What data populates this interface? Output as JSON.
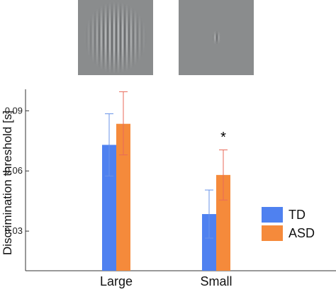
{
  "stimuli": [
    {
      "name": "Large",
      "kind": "grating-wide"
    },
    {
      "name": "Small",
      "kind": "grating-narrow"
    }
  ],
  "chart_data": {
    "type": "bar",
    "ylabel": "Discrimination threshold [s]",
    "xlabel": "",
    "categories": [
      "Large",
      "Small"
    ],
    "ylim": [
      0.0,
      0.1
    ],
    "yticks": [
      0.03,
      0.06,
      0.09
    ],
    "ytick_labels": [
      "0.03",
      "0.06",
      "0.09"
    ],
    "series": [
      {
        "name": "TD",
        "color": "#4f81f0",
        "values": [
          0.073,
          0.0385
        ],
        "err_low": [
          0.0575,
          0.0265
        ],
        "err_high": [
          0.0885,
          0.0505
        ]
      },
      {
        "name": "ASD",
        "color": "#f58a3b",
        "values": [
          0.0835,
          0.058
        ],
        "err_low": [
          0.068,
          0.0455
        ],
        "err_high": [
          0.0995,
          0.0705
        ]
      }
    ],
    "error_colors": [
      "#6a93e8",
      "#e86a5a"
    ],
    "annotations": [
      {
        "category": "Small",
        "text": "*"
      }
    ],
    "legend": {
      "position": "right",
      "entries": [
        "TD",
        "ASD"
      ]
    },
    "grid": false
  }
}
